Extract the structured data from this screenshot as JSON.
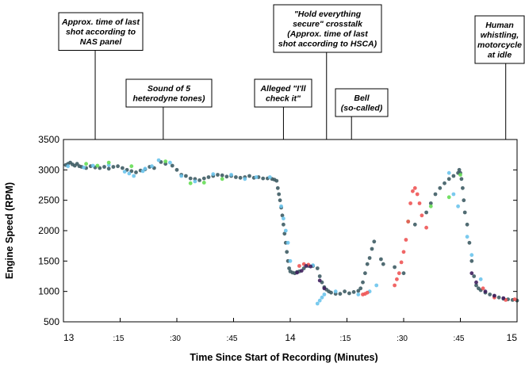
{
  "chart_data": {
    "type": "scatter",
    "title": "",
    "xlabel": "Time Since Start of Recording (Minutes)",
    "ylabel": "Engine Speed (RPM)",
    "xlim": [
      13,
      15
    ],
    "ylim": [
      500,
      3500
    ],
    "y_ticks": [
      500,
      1000,
      1500,
      2000,
      2500,
      3000,
      3500
    ],
    "x_ticks": [
      {
        "value": 13,
        "label": "13"
      },
      {
        "value": 13.25,
        "label": ":15"
      },
      {
        "value": 13.5,
        "label": ":30"
      },
      {
        "value": 13.75,
        "label": ":45"
      },
      {
        "value": 14,
        "label": "14"
      },
      {
        "value": 14.25,
        "label": ":15"
      },
      {
        "value": 14.5,
        "label": ":30"
      },
      {
        "value": 14.75,
        "label": ":45"
      },
      {
        "value": 15,
        "label": "15"
      }
    ],
    "grid": false,
    "legend": "none",
    "colors": {
      "dark_teal": "#3e5c64",
      "light_blue": "#6cc4ec",
      "green": "#66dd55",
      "red": "#ee5555",
      "purple": "#3f1f5e"
    },
    "annotations": [
      {
        "x": 13.14,
        "lines": [
          "Approx. time of last",
          "shot according to",
          "NAS panel"
        ]
      },
      {
        "x": 13.44,
        "lines": [
          "Sound of 5",
          "heterodyne tones)"
        ]
      },
      {
        "x": 13.97,
        "lines": [
          "Alleged \"I'll",
          "check it\""
        ]
      },
      {
        "x": 14.16,
        "lines": [
          "\"Hold everything",
          "secure\" crosstalk",
          "(Approx. time of last",
          "shot according to HSCA)"
        ]
      },
      {
        "x": 14.27,
        "lines": [
          "Bell",
          "(so-called)"
        ]
      },
      {
        "x": 14.95,
        "lines": [
          "Human",
          "whistling,",
          "motorcycle",
          "at idle"
        ]
      }
    ],
    "series": [
      {
        "color": "#3e5c64",
        "points": [
          [
            13.01,
            3080
          ],
          [
            13.02,
            3100
          ],
          [
            13.03,
            3120
          ],
          [
            13.04,
            3090
          ],
          [
            13.05,
            3070
          ],
          [
            13.06,
            3100
          ],
          [
            13.07,
            3060
          ],
          [
            13.08,
            3050
          ],
          [
            13.1,
            3030
          ],
          [
            13.12,
            3060
          ],
          [
            13.14,
            3040
          ],
          [
            13.16,
            3030
          ],
          [
            13.18,
            3050
          ],
          [
            13.2,
            3020
          ],
          [
            13.22,
            3050
          ],
          [
            13.24,
            3060
          ],
          [
            13.26,
            3030
          ],
          [
            13.28,
            3000
          ],
          [
            13.3,
            2980
          ],
          [
            13.32,
            2960
          ],
          [
            13.34,
            2990
          ],
          [
            13.36,
            3010
          ],
          [
            13.38,
            3050
          ],
          [
            13.4,
            3030
          ],
          [
            13.43,
            3130
          ],
          [
            13.45,
            3100
          ],
          [
            13.48,
            3070
          ],
          [
            13.5,
            3000
          ],
          [
            13.52,
            2920
          ],
          [
            13.54,
            2900
          ],
          [
            13.56,
            2860
          ],
          [
            13.58,
            2850
          ],
          [
            13.6,
            2830
          ],
          [
            13.62,
            2860
          ],
          [
            13.64,
            2880
          ],
          [
            13.66,
            2900
          ],
          [
            13.68,
            2920
          ],
          [
            13.7,
            2910
          ],
          [
            13.72,
            2890
          ],
          [
            13.74,
            2900
          ],
          [
            13.76,
            2880
          ],
          [
            13.78,
            2870
          ],
          [
            13.8,
            2880
          ],
          [
            13.82,
            2900
          ],
          [
            13.84,
            2870
          ],
          [
            13.86,
            2880
          ],
          [
            13.88,
            2860
          ],
          [
            13.9,
            2860
          ],
          [
            13.92,
            2850
          ],
          [
            13.93,
            2840
          ],
          [
            13.94,
            2820
          ],
          [
            13.945,
            2700
          ],
          [
            13.95,
            2600
          ],
          [
            13.955,
            2500
          ],
          [
            13.96,
            2380
          ],
          [
            13.965,
            2250
          ],
          [
            13.97,
            2100
          ],
          [
            13.975,
            1950
          ],
          [
            13.98,
            1800
          ],
          [
            13.985,
            1650
          ],
          [
            13.99,
            1500
          ],
          [
            13.995,
            1380
          ],
          [
            14.0,
            1330
          ],
          [
            14.01,
            1310
          ],
          [
            14.02,
            1300
          ],
          [
            14.03,
            1320
          ],
          [
            14.04,
            1330
          ],
          [
            14.06,
            1380
          ],
          [
            14.08,
            1420
          ],
          [
            14.1,
            1420
          ],
          [
            14.12,
            1380
          ],
          [
            14.13,
            1250
          ],
          [
            14.14,
            1150
          ],
          [
            14.15,
            1070
          ],
          [
            14.16,
            1030
          ],
          [
            14.17,
            1000
          ],
          [
            14.18,
            980
          ],
          [
            14.2,
            960
          ],
          [
            14.22,
            960
          ],
          [
            14.24,
            1000
          ],
          [
            14.26,
            970
          ],
          [
            14.28,
            990
          ],
          [
            14.3,
            1010
          ],
          [
            14.31,
            1050
          ],
          [
            14.32,
            1150
          ],
          [
            14.33,
            1300
          ],
          [
            14.34,
            1450
          ],
          [
            14.35,
            1550
          ],
          [
            14.36,
            1700
          ],
          [
            14.37,
            1820
          ],
          [
            14.4,
            1530
          ],
          [
            14.41,
            1450
          ],
          [
            14.46,
            1400
          ],
          [
            14.5,
            1300
          ],
          [
            14.55,
            2100
          ],
          [
            14.6,
            2300
          ],
          [
            14.62,
            2450
          ],
          [
            14.64,
            2600
          ],
          [
            14.66,
            2700
          ],
          [
            14.68,
            2780
          ],
          [
            14.7,
            2850
          ],
          [
            14.72,
            2900
          ],
          [
            14.74,
            2950
          ],
          [
            14.745,
            3000
          ],
          [
            14.75,
            2950
          ],
          [
            14.755,
            2850
          ],
          [
            14.76,
            2700
          ],
          [
            14.765,
            2500
          ],
          [
            14.77,
            2300
          ],
          [
            14.78,
            2100
          ],
          [
            14.79,
            1800
          ],
          [
            14.8,
            1500
          ],
          [
            14.81,
            1250
          ],
          [
            14.82,
            1100
          ],
          [
            14.83,
            1050
          ],
          [
            14.84,
            1020
          ],
          [
            14.86,
            980
          ],
          [
            14.88,
            950
          ],
          [
            14.9,
            920
          ],
          [
            14.92,
            900
          ],
          [
            14.94,
            880
          ],
          [
            14.96,
            870
          ],
          [
            14.98,
            860
          ],
          [
            15.0,
            850
          ]
        ]
      },
      {
        "color": "#6cc4ec",
        "points": [
          [
            13.02,
            3060
          ],
          [
            13.09,
            3040
          ],
          [
            13.13,
            3070
          ],
          [
            13.2,
            3080
          ],
          [
            13.27,
            2970
          ],
          [
            13.29,
            2940
          ],
          [
            13.31,
            2900
          ],
          [
            13.35,
            2980
          ],
          [
            13.36,
            3020
          ],
          [
            13.39,
            3060
          ],
          [
            13.42,
            3160
          ],
          [
            13.47,
            3120
          ],
          [
            13.52,
            2900
          ],
          [
            13.58,
            2810
          ],
          [
            13.66,
            2930
          ],
          [
            13.74,
            2920
          ],
          [
            13.8,
            2850
          ],
          [
            13.85,
            2880
          ],
          [
            13.91,
            2880
          ],
          [
            13.96,
            2400
          ],
          [
            13.97,
            2200
          ],
          [
            13.98,
            2000
          ],
          [
            13.99,
            1800
          ],
          [
            14.0,
            1500
          ],
          [
            14.1,
            1430
          ],
          [
            14.12,
            800
          ],
          [
            14.13,
            850
          ],
          [
            14.14,
            900
          ],
          [
            14.15,
            950
          ],
          [
            14.2,
            1000
          ],
          [
            14.3,
            950
          ],
          [
            14.35,
            1000
          ],
          [
            14.38,
            1100
          ],
          [
            14.7,
            2950
          ],
          [
            14.72,
            2600
          ],
          [
            14.74,
            2400
          ],
          [
            14.78,
            1900
          ],
          [
            14.8,
            1600
          ],
          [
            14.84,
            1200
          ]
        ]
      },
      {
        "color": "#66dd55",
        "points": [
          [
            13.1,
            3100
          ],
          [
            13.15,
            3070
          ],
          [
            13.2,
            3120
          ],
          [
            13.3,
            3060
          ],
          [
            13.45,
            3140
          ],
          [
            13.56,
            2780
          ],
          [
            13.62,
            2790
          ],
          [
            13.7,
            2850
          ],
          [
            14.52,
            2150
          ],
          [
            14.62,
            2400
          ],
          [
            14.7,
            2550
          ],
          [
            14.75,
            2920
          ]
        ]
      },
      {
        "color": "#ee5555",
        "points": [
          [
            14.04,
            1420
          ],
          [
            14.06,
            1450
          ],
          [
            14.08,
            1440
          ],
          [
            14.32,
            950
          ],
          [
            14.33,
            960
          ],
          [
            14.34,
            980
          ],
          [
            14.46,
            1100
          ],
          [
            14.47,
            1200
          ],
          [
            14.48,
            1300
          ],
          [
            14.49,
            1480
          ],
          [
            14.5,
            1650
          ],
          [
            14.51,
            1850
          ],
          [
            14.52,
            2150
          ],
          [
            14.53,
            2450
          ],
          [
            14.54,
            2650
          ],
          [
            14.55,
            2700
          ],
          [
            14.56,
            2600
          ],
          [
            14.57,
            2450
          ],
          [
            14.58,
            2250
          ],
          [
            14.6,
            2050
          ],
          [
            14.85,
            1050
          ],
          [
            14.9,
            900
          ],
          [
            14.95,
            860
          ],
          [
            14.99,
            870
          ]
        ]
      },
      {
        "color": "#3f1f5e",
        "points": [
          [
            14.03,
            1310
          ],
          [
            14.05,
            1340
          ],
          [
            14.07,
            1420
          ],
          [
            14.09,
            1410
          ],
          [
            14.13,
            1180
          ],
          [
            14.15,
            1050
          ],
          [
            14.8,
            1300
          ],
          [
            14.82,
            1150
          ],
          [
            14.86,
            1000
          ],
          [
            14.9,
            930
          ],
          [
            14.94,
            890
          ]
        ]
      }
    ]
  }
}
